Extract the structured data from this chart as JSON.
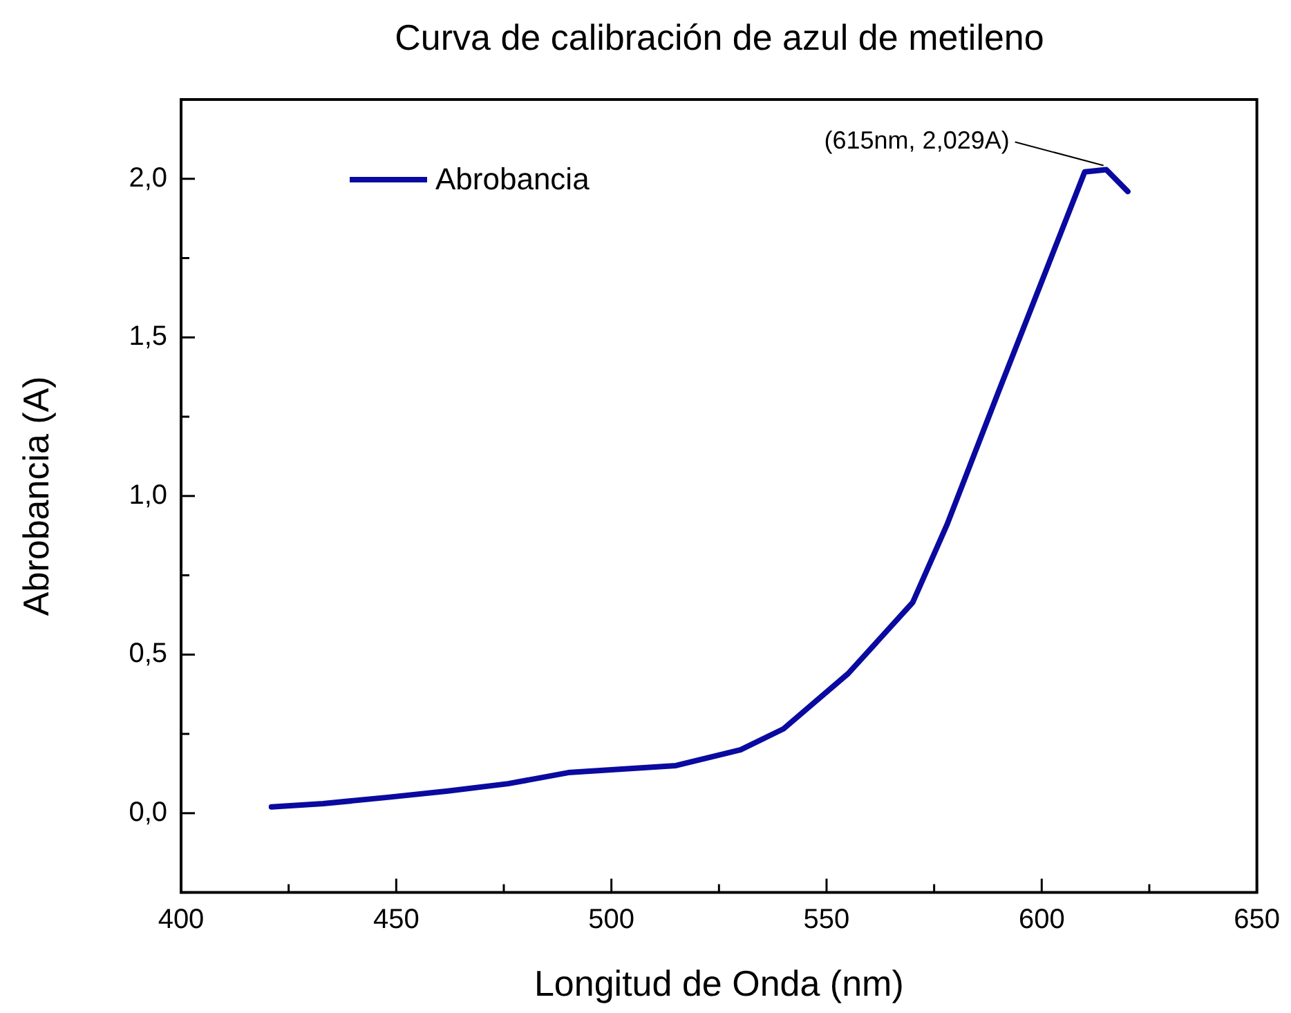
{
  "chart_data": {
    "type": "line",
    "title": "Curva de calibración de azul de metileno",
    "xlabel": "Longitud de Onda (nm)",
    "ylabel": "Abrobancia (A)",
    "x": [
      421,
      433,
      448,
      462,
      476,
      490,
      515,
      530,
      540,
      555,
      570,
      578,
      590,
      610,
      615,
      620
    ],
    "series": [
      {
        "name": "Abrobancia",
        "color": "#0a0aa0",
        "values": [
          0.02,
          0.03,
          0.05,
          0.07,
          0.093,
          0.128,
          0.15,
          0.2,
          0.266,
          0.44,
          0.664,
          0.91,
          1.33,
          2.022,
          2.029,
          1.96
        ]
      }
    ],
    "xlim": [
      400,
      650
    ],
    "xticks": [
      400,
      {
        "value": 425,
        "label": null
      },
      450,
      {
        "value": 475,
        "label": null
      },
      500,
      {
        "value": 525,
        "label": null
      },
      550,
      {
        "value": 575,
        "label": null
      },
      600,
      {
        "value": 625,
        "label": null
      },
      650
    ],
    "ylim": [
      -0.25,
      2.25
    ],
    "yticks": [
      {
        "value": -0.25,
        "label": null
      },
      {
        "value": 0,
        "label": "0,0"
      },
      {
        "value": 0.25,
        "label": null
      },
      {
        "value": 0.5,
        "label": "0,5"
      },
      {
        "value": 0.75,
        "label": null
      },
      {
        "value": 1,
        "label": "1,0"
      },
      {
        "value": 1.25,
        "label": null
      },
      {
        "value": 1.5,
        "label": "1,5"
      },
      {
        "value": 1.75,
        "label": null
      },
      {
        "value": 2,
        "label": "2,0"
      },
      {
        "value": 2.25,
        "label": null
      }
    ],
    "annotations": [
      {
        "text": "(615nm, 2,029A)",
        "x": 615,
        "y": 2.029
      }
    ],
    "grid": false,
    "legend": "top left",
    "marker": "none",
    "line_style": "solid"
  }
}
